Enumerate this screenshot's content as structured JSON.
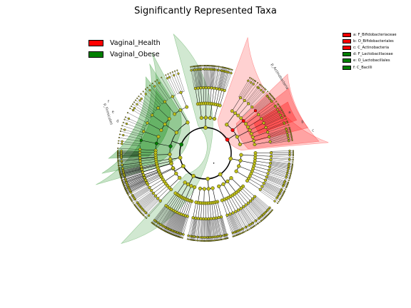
{
  "title": "Significantly Represented Taxa",
  "legend": [
    {
      "label": "Vaginal_Health",
      "color": "#ff0000"
    },
    {
      "label": "Vaginal_Obese",
      "color": "#008000"
    }
  ],
  "clade_legend": [
    {
      "label": "a: F_Bifidobacteriaceae",
      "color": "#ff0000"
    },
    {
      "label": "b: O_Bifidobacteriales",
      "color": "#ff0000"
    },
    {
      "label": "c: C_Actinobacteria",
      "color": "#ff0000"
    },
    {
      "label": "d: F_Lactobacillaceae",
      "color": "#008000"
    },
    {
      "label": "e: O_Lactobacillales",
      "color": "#008000"
    },
    {
      "label": "f: C_Bacilli",
      "color": "#008000"
    }
  ],
  "ring_labels": {
    "actinobacteria": "p_Actinobacteria",
    "firmicutes": "p_Firmicutes",
    "a": "a",
    "b": "b",
    "c": "c",
    "d": "d",
    "e": "e",
    "f": "f"
  },
  "colors": {
    "node_default": "#bfbf1a",
    "node_red": "#ff0000",
    "node_green": "#008000",
    "shade_red": "#ff0000",
    "shade_green": "#008000"
  }
}
